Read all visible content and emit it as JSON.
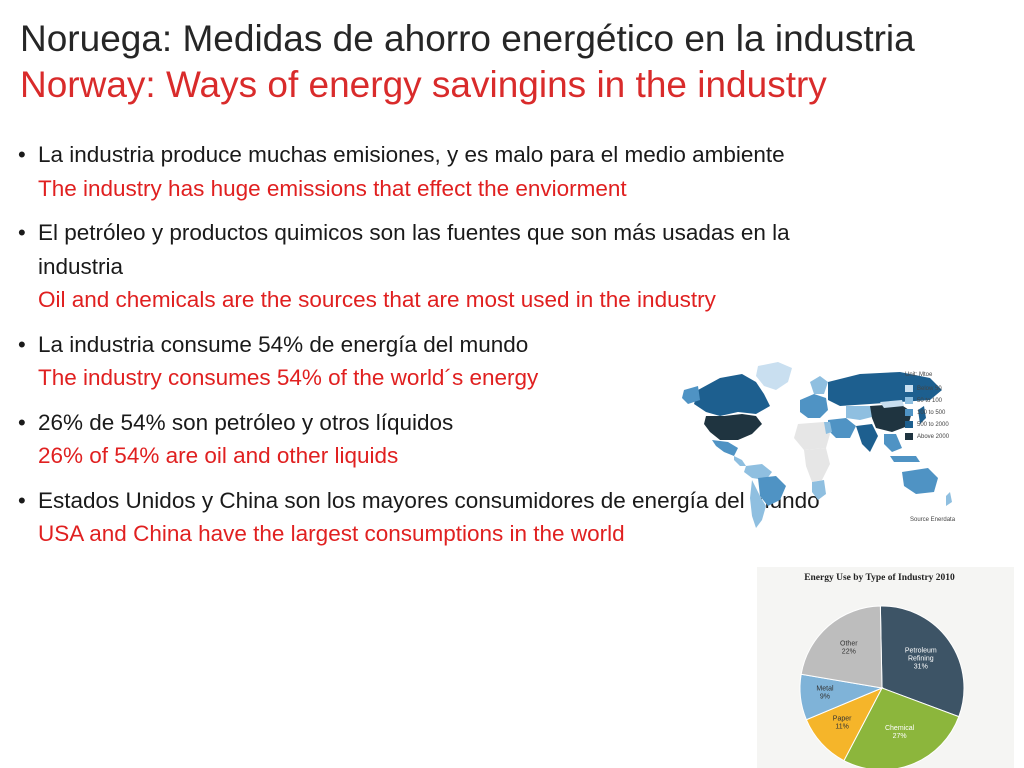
{
  "slide": {
    "title_es": "Noruega: Medidas de ahorro energético en la industria",
    "title_en": "Norway: Ways of energy savingins in the industry",
    "bullets": [
      {
        "es": "La industria produce muchas emisiones, y  es malo para el  medio ambiente",
        "en": "The industry has huge emissions that effect the enviorment"
      },
      {
        "es": "El petróleo y productos quimicos son las fuentes que son más usadas en la industria",
        "en": "Oil and chemicals are the sources that are most used in the industry"
      },
      {
        "es": "La industria consume 54% de energía del mundo",
        "en": "The industry consumes 54% of the world´s energy"
      },
      {
        "es": "26% de 54% son petróleo y otros líquidos",
        "en": "26% of 54% are oil and other liquids"
      },
      {
        "es": "Estados Unidos y China son los mayores consumidores de energía del mundo",
        "en": "USA and China have the largest consumptions in the world"
      }
    ],
    "bullet_glyph": "•"
  },
  "world_map": {
    "legend_title": "Unit: Mtoe",
    "legend": [
      {
        "label": "Below 50",
        "color": "#c9dff0"
      },
      {
        "label": "50 to 100",
        "color": "#8fbfe0"
      },
      {
        "label": "100 to 500",
        "color": "#4f93c4"
      },
      {
        "label": "500 to 2000",
        "color": "#1d5f8f"
      },
      {
        "label": "Above 2000",
        "color": "#1f3440"
      }
    ],
    "source": "Source Enerdata",
    "land_default_color": "#e6e6e6"
  },
  "chart_data": {
    "type": "pie",
    "title": "Energy Use by Type of Industry 2010",
    "slices": [
      {
        "label": "Petroleum Refining",
        "value": 31,
        "color": "#3d5466"
      },
      {
        "label": "Chemical",
        "value": 27,
        "color": "#8cb63c"
      },
      {
        "label": "Paper",
        "value": 11,
        "color": "#f5b52a"
      },
      {
        "label": "Metal",
        "value": 9,
        "color": "#7fb3d8"
      },
      {
        "label": "Other",
        "value": 22,
        "color": "#bdbdbd"
      }
    ],
    "value_suffix": "%"
  }
}
